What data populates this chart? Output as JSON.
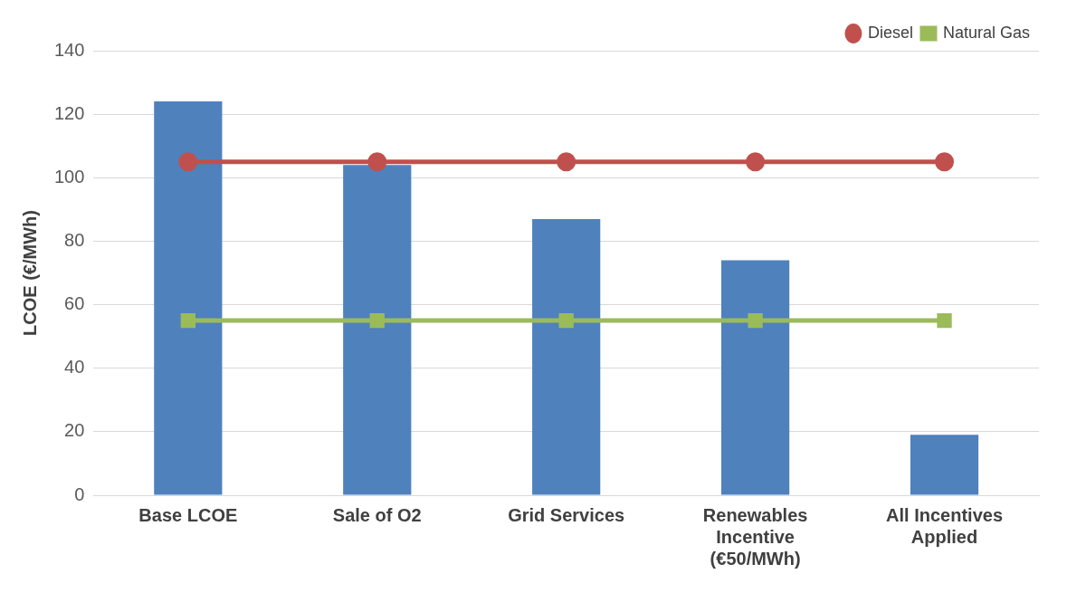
{
  "chart_data": {
    "type": "bar",
    "ylabel": "LCOE (€/MWh)",
    "categories": [
      "Base LCOE",
      "Sale of O2",
      "Grid Services",
      "Renewables Incentive (€50/MWh)",
      "All Incentives Applied"
    ],
    "series": [
      {
        "color": "#4f81bd",
        "values": [
          124,
          104,
          87,
          74,
          19
        ]
      },
      {
        "type": "line",
        "name": "Diesel",
        "color": "#c0504d",
        "marker": "circle",
        "values": [
          105,
          105,
          105,
          105,
          105
        ]
      },
      {
        "type": "line",
        "name": "Natural Gas",
        "color": "#9bbb59",
        "marker": "square",
        "values": [
          55,
          55,
          55,
          55,
          55
        ]
      }
    ],
    "ylim": [
      0,
      140
    ],
    "yticks": [
      0,
      20,
      40,
      60,
      80,
      100,
      120,
      140
    ],
    "grid": "y",
    "legend": "top right"
  }
}
